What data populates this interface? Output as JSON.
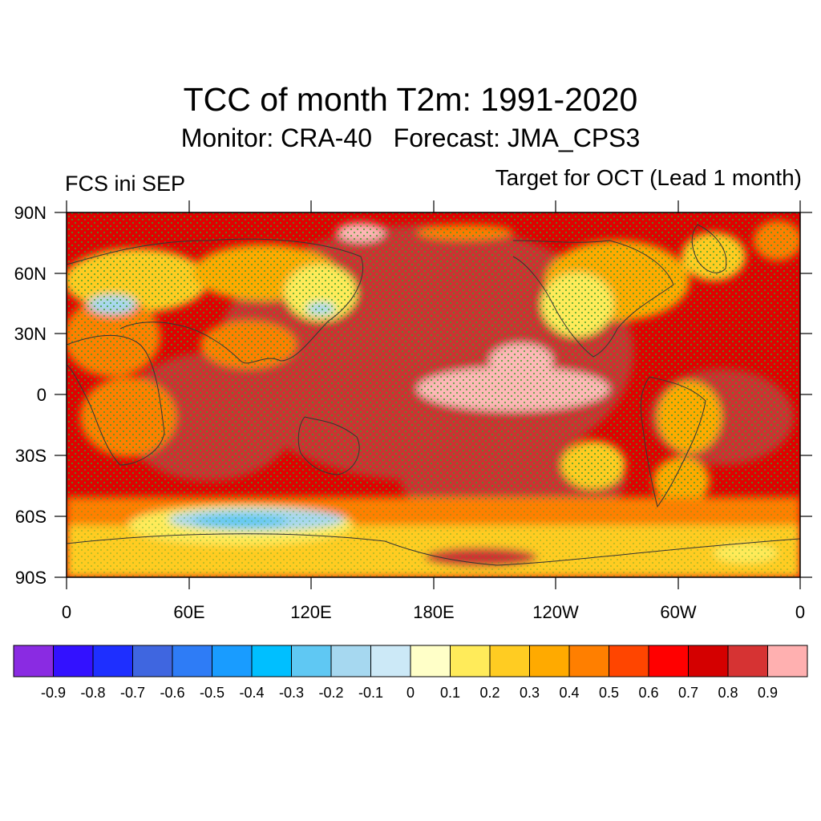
{
  "title": "TCC of month T2m: 1991-2020",
  "subtitle": "Monitor: CRA-40   Forecast: JMA_CPS3",
  "left_label": "FCS ini SEP",
  "right_label": "Target for OCT (Lead 1 month)",
  "map": {
    "variable": "TCC of T2m",
    "projection": "equirectangular",
    "central_longitude": 180,
    "lat_ticks": [
      "90N",
      "60N",
      "30N",
      "0",
      "30S",
      "60S",
      "90S"
    ],
    "lon_ticks": [
      "0",
      "60E",
      "120E",
      "180E",
      "120W",
      "60W",
      "0"
    ],
    "stipple_color": "#2ca02c",
    "coastline_color": "#333333"
  },
  "colorbar": {
    "labels": [
      "-0.9",
      "-0.8",
      "-0.7",
      "-0.6",
      "-0.5",
      "-0.4",
      "-0.3",
      "-0.2",
      "-0.1",
      "0",
      "0.1",
      "0.2",
      "0.3",
      "0.4",
      "0.5",
      "0.6",
      "0.7",
      "0.8",
      "0.9"
    ],
    "colors": [
      "#8a2be2",
      "#3311ff",
      "#1e2fff",
      "#3f66e0",
      "#2e7cf6",
      "#199cff",
      "#00bfff",
      "#5fc8f3",
      "#a6d8f0",
      "#cce9f7",
      "#ffffc8",
      "#ffeb5a",
      "#ffcc22",
      "#ffaa00",
      "#ff7f00",
      "#ff4500",
      "#ff0000",
      "#d40000",
      "#d63333",
      "#ffb0b0"
    ]
  }
}
